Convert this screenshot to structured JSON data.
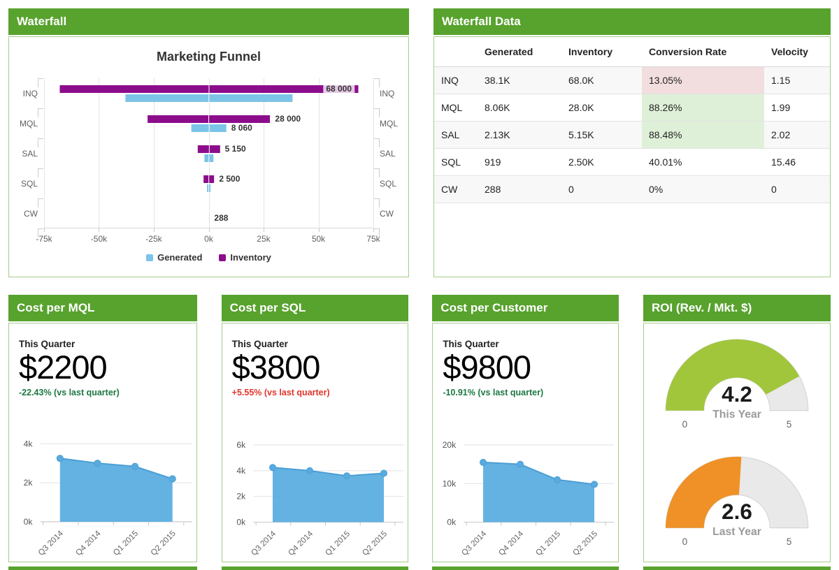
{
  "page": {
    "accent_green": "#58a22e",
    "panel_border": "#a6cb8d"
  },
  "panels": {
    "waterfall": {
      "title": "Waterfall"
    },
    "waterfall_data": {
      "title": "Waterfall Data"
    },
    "roi": {
      "title": "ROI (Rev. / Mkt. $)"
    }
  },
  "waterfall_table": {
    "columns": [
      "",
      "Generated",
      "Inventory",
      "Conversion Rate",
      "Velocity"
    ],
    "rows": [
      {
        "stage": "INQ",
        "generated": "38.1K",
        "inventory": "68.0K",
        "conversion_rate": "13.05%",
        "conversion_highlight": "red",
        "velocity": "1.15"
      },
      {
        "stage": "MQL",
        "generated": "8.06K",
        "inventory": "28.0K",
        "conversion_rate": "88.26%",
        "conversion_highlight": "green",
        "velocity": "1.99"
      },
      {
        "stage": "SAL",
        "generated": "2.13K",
        "inventory": "5.15K",
        "conversion_rate": "88.48%",
        "conversion_highlight": "green",
        "velocity": "2.02"
      },
      {
        "stage": "SQL",
        "generated": "919",
        "inventory": "2.50K",
        "conversion_rate": "40.01%",
        "conversion_highlight": "none",
        "velocity": "15.46"
      },
      {
        "stage": "CW",
        "generated": "288",
        "inventory": "0",
        "conversion_rate": "0%",
        "conversion_highlight": "none",
        "velocity": "0"
      }
    ],
    "highlight_colors": {
      "red": "#f2dede",
      "green": "#dff0d8"
    }
  },
  "kpi_panels": [
    {
      "title": "Cost per MQL",
      "period": "This Quarter",
      "value": "$2200",
      "delta": "-22.43% (vs last quarter)",
      "delta_color": "#1b7742"
    },
    {
      "title": "Cost per SQL",
      "period": "This Quarter",
      "value": "$3800",
      "delta": "+5.55% (vs last quarter)",
      "delta_color": "#e1352b"
    },
    {
      "title": "Cost per Customer",
      "period": "This Quarter",
      "value": "$9800",
      "delta": "-10.91% (vs last quarter)",
      "delta_color": "#1b7742"
    }
  ],
  "chart_data": [
    {
      "type": "bar",
      "variant": "centered-tornado-funnel",
      "title": "Marketing Funnel",
      "categories": [
        "INQ",
        "MQL",
        "SAL",
        "SQL",
        "CW"
      ],
      "series": [
        {
          "name": "Generated",
          "color": "#7cc4e8",
          "values": [
            38100,
            8060,
            2130,
            919,
            288
          ],
          "data_labels": [
            "",
            "8 060",
            "",
            "",
            "288"
          ]
        },
        {
          "name": "Inventory",
          "color": "#8c0d8c",
          "values": [
            68000,
            28000,
            5150,
            2500,
            0
          ],
          "data_labels": [
            "68 000",
            "28 000",
            "5 150",
            "2 500",
            ""
          ],
          "labels_inside": [
            true,
            false,
            false,
            false,
            false
          ]
        }
      ],
      "xlim": [
        -75000,
        75000
      ],
      "x_tick_labels": [
        "-75k",
        "-50k",
        "-25k",
        "0k",
        "25k",
        "50k",
        "75k"
      ],
      "legend_position": "bottom"
    },
    {
      "type": "area",
      "x": [
        "Q3 2014",
        "Q4 2014",
        "Q1 2015",
        "Q2 2015"
      ],
      "values": [
        3250,
        3000,
        2836,
        2200
      ],
      "ylim": [
        0,
        4000
      ],
      "y_tick_labels": [
        "0k",
        "2k",
        "4k"
      ],
      "color": "#57abdf",
      "line_color": "#4b9fd4"
    },
    {
      "type": "area",
      "x": [
        "Q3 2014",
        "Q4 2014",
        "Q1 2015",
        "Q2 2015"
      ],
      "values": [
        4250,
        4000,
        3600,
        3800
      ],
      "ylim": [
        0,
        6000
      ],
      "y_tick_labels": [
        "0k",
        "2k",
        "4k",
        "6k"
      ],
      "color": "#57abdf",
      "line_color": "#4b9fd4"
    },
    {
      "type": "area",
      "x": [
        "Q3 2014",
        "Q4 2014",
        "Q1 2015",
        "Q2 2015"
      ],
      "values": [
        15500,
        15000,
        11000,
        9800
      ],
      "ylim": [
        0,
        20000
      ],
      "y_tick_labels": [
        "0k",
        "10k",
        "20k"
      ],
      "color": "#57abdf",
      "line_color": "#4b9fd4"
    },
    {
      "type": "gauge",
      "track_color": "#e9e9e9",
      "gauges": [
        {
          "value": 4.2,
          "label": "This Year",
          "min": 0,
          "max": 5,
          "color": "#a1c63c"
        },
        {
          "value": 2.6,
          "label": "Last Year",
          "min": 0,
          "max": 5,
          "color": "#ef9126"
        }
      ]
    }
  ]
}
